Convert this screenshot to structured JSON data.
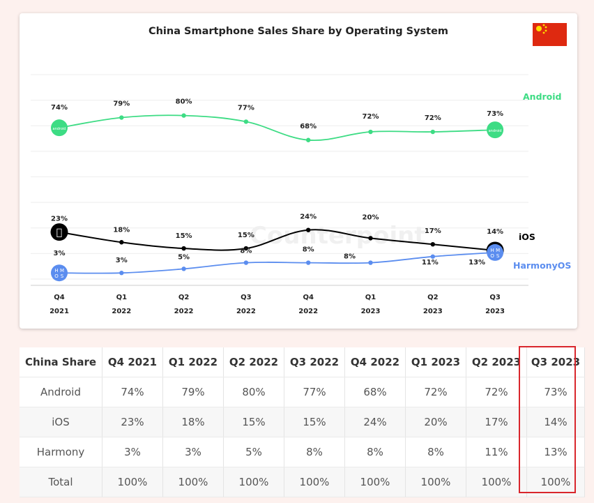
{
  "chart_data": {
    "type": "line",
    "title": "China Smartphone Sales Share by Operating System",
    "categories": [
      [
        "Q4",
        "2021"
      ],
      [
        "Q1",
        "2022"
      ],
      [
        "Q2",
        "2022"
      ],
      [
        "Q3",
        "2022"
      ],
      [
        "Q4",
        "2022"
      ],
      [
        "Q1",
        "2023"
      ],
      [
        "Q2",
        "2023"
      ],
      [
        "Q3",
        "2023"
      ]
    ],
    "ylim": [
      0,
      100
    ],
    "series": [
      {
        "name": "Android",
        "color": "#3ddc84",
        "values": [
          74,
          79,
          80,
          77,
          68,
          72,
          72,
          73
        ],
        "labels": [
          "74%",
          "79%",
          "80%",
          "77%",
          "68%",
          "72%",
          "72%",
          "73%"
        ],
        "icon": "android-icon",
        "icon_text": "android"
      },
      {
        "name": "iOS",
        "color": "#000000",
        "values": [
          23,
          18,
          15,
          15,
          24,
          20,
          17,
          14
        ],
        "labels": [
          "23%",
          "18%",
          "15%",
          "15%",
          "24%",
          "20%",
          "17%",
          "14%"
        ],
        "icon": "apple-icon"
      },
      {
        "name": "HarmonyOS",
        "color": "#5b8def",
        "values": [
          3,
          3,
          5,
          8,
          8,
          8,
          11,
          13
        ],
        "labels": [
          "3%",
          "3%",
          "5%",
          "8%",
          "8%",
          "8%",
          "11%",
          "13%"
        ],
        "icon": "hmos-icon",
        "icon_text": [
          "H",
          "M",
          "O",
          "S"
        ]
      }
    ],
    "grid": true,
    "flag_icon": "china-flag-icon",
    "watermark": "Counterpoint"
  },
  "table": {
    "headers": [
      "China Share",
      "Q4 2021",
      "Q1 2022",
      "Q2 2022",
      "Q3 2022",
      "Q4 2022",
      "Q1 2023",
      "Q2 2023",
      "Q3 2023"
    ],
    "rows": [
      [
        "Android",
        "74%",
        "79%",
        "80%",
        "77%",
        "68%",
        "72%",
        "72%",
        "73%"
      ],
      [
        "iOS",
        "23%",
        "18%",
        "15%",
        "15%",
        "24%",
        "20%",
        "17%",
        "14%"
      ],
      [
        "Harmony",
        "3%",
        "3%",
        "5%",
        "8%",
        "8%",
        "8%",
        "11%",
        "13%"
      ],
      [
        "Total",
        "100%",
        "100%",
        "100%",
        "100%",
        "100%",
        "100%",
        "100%",
        "100%"
      ]
    ],
    "highlight_column": "Q3 2023",
    "highlight_color": "#d9262c"
  }
}
